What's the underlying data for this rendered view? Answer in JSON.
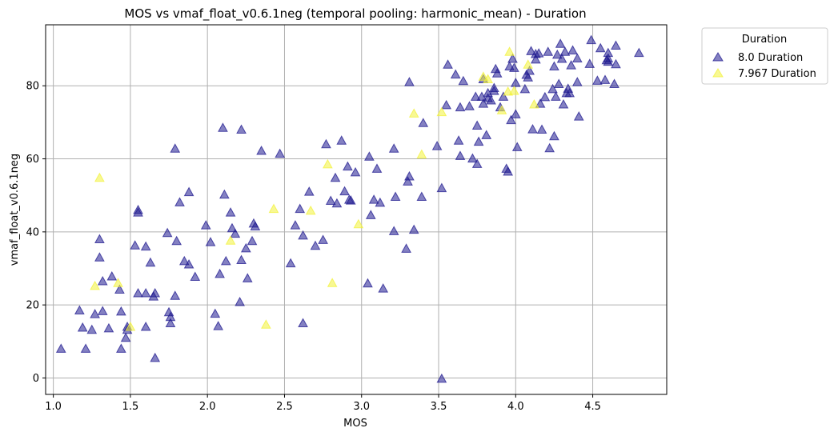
{
  "chart_data": {
    "type": "scatter",
    "title": "MOS vs vmaf_float_v0.6.1neg (temporal pooling: harmonic_mean) - Duration",
    "xlabel": "MOS",
    "ylabel": "vmaf_float_v0.6.1neg",
    "xlim": [
      0.95,
      4.98
    ],
    "ylim": [
      -4.5,
      96.7
    ],
    "xticks": [
      "1.0",
      "1.5",
      "2.0",
      "2.5",
      "3.0",
      "3.5",
      "4.0",
      "4.5"
    ],
    "yticks": [
      "0",
      "20",
      "40",
      "60",
      "80"
    ],
    "grid": true,
    "marker": "triangle",
    "legend": {
      "title": "Duration",
      "placement": "outside-top-right"
    },
    "series": [
      {
        "name": "8.0 Duration",
        "color": "#1f1a8f",
        "points": [
          [
            1.05,
            8.0
          ],
          [
            1.17,
            18.5
          ],
          [
            1.19,
            13.8
          ],
          [
            1.21,
            8.0
          ],
          [
            1.25,
            13.2
          ],
          [
            1.27,
            17.5
          ],
          [
            1.3,
            38.0
          ],
          [
            1.3,
            33.0
          ],
          [
            1.32,
            26.5
          ],
          [
            1.32,
            18.3
          ],
          [
            1.36,
            13.6
          ],
          [
            1.38,
            27.8
          ],
          [
            1.43,
            24.2
          ],
          [
            1.44,
            18.2
          ],
          [
            1.44,
            8.0
          ],
          [
            1.47,
            11.0
          ],
          [
            1.48,
            13.2
          ],
          [
            1.48,
            14.0
          ],
          [
            1.53,
            36.3
          ],
          [
            1.55,
            46.0
          ],
          [
            1.55,
            45.3
          ],
          [
            1.55,
            23.2
          ],
          [
            1.6,
            36.0
          ],
          [
            1.6,
            23.2
          ],
          [
            1.6,
            14.0
          ],
          [
            1.63,
            31.6
          ],
          [
            1.65,
            22.3
          ],
          [
            1.66,
            23.2
          ],
          [
            1.66,
            5.5
          ],
          [
            1.74,
            39.7
          ],
          [
            1.75,
            18.0
          ],
          [
            1.76,
            16.7
          ],
          [
            1.76,
            15.0
          ],
          [
            1.79,
            62.8
          ],
          [
            1.79,
            22.5
          ],
          [
            1.8,
            37.5
          ],
          [
            1.82,
            48.1
          ],
          [
            1.85,
            32.0
          ],
          [
            1.88,
            50.9
          ],
          [
            1.88,
            31.1
          ],
          [
            1.92,
            27.7
          ],
          [
            1.99,
            41.8
          ],
          [
            2.02,
            37.2
          ],
          [
            2.05,
            17.6
          ],
          [
            2.07,
            14.2
          ],
          [
            2.08,
            28.5
          ],
          [
            2.1,
            68.5
          ],
          [
            2.11,
            50.2
          ],
          [
            2.12,
            32.0
          ],
          [
            2.15,
            45.3
          ],
          [
            2.16,
            41.0
          ],
          [
            2.18,
            39.5
          ],
          [
            2.22,
            68.0
          ],
          [
            2.21,
            20.8
          ],
          [
            2.22,
            32.3
          ],
          [
            2.25,
            35.5
          ],
          [
            2.26,
            27.3
          ],
          [
            2.29,
            37.5
          ],
          [
            2.3,
            42.3
          ],
          [
            2.31,
            41.5
          ],
          [
            2.35,
            62.2
          ],
          [
            2.47,
            61.4
          ],
          [
            2.54,
            31.4
          ],
          [
            2.57,
            41.8
          ],
          [
            2.6,
            46.3
          ],
          [
            2.62,
            39.0
          ],
          [
            2.62,
            15.0
          ],
          [
            2.66,
            51.0
          ],
          [
            2.7,
            36.2
          ],
          [
            2.75,
            37.8
          ],
          [
            2.77,
            64.0
          ],
          [
            2.8,
            48.5
          ],
          [
            2.83,
            54.8
          ],
          [
            2.84,
            47.8
          ],
          [
            2.87,
            65.0
          ],
          [
            2.89,
            51.1
          ],
          [
            2.91,
            57.9
          ],
          [
            2.92,
            48.8
          ],
          [
            2.93,
            48.6
          ],
          [
            2.96,
            56.3
          ],
          [
            3.04,
            25.9
          ],
          [
            3.05,
            60.6
          ],
          [
            3.06,
            44.6
          ],
          [
            3.08,
            48.8
          ],
          [
            3.1,
            57.3
          ],
          [
            3.12,
            48.0
          ],
          [
            3.14,
            24.5
          ],
          [
            3.21,
            62.8
          ],
          [
            3.21,
            40.2
          ],
          [
            3.22,
            49.6
          ],
          [
            3.29,
            35.4
          ],
          [
            3.3,
            53.8
          ],
          [
            3.31,
            81.0
          ],
          [
            3.31,
            55.2
          ],
          [
            3.34,
            40.6
          ],
          [
            3.39,
            49.6
          ],
          [
            3.4,
            69.8
          ],
          [
            3.49,
            63.5
          ],
          [
            3.52,
            52.0
          ],
          [
            3.52,
            -0.2
          ],
          [
            3.55,
            74.7
          ],
          [
            3.56,
            85.8
          ],
          [
            3.61,
            83.1
          ],
          [
            3.63,
            65.0
          ],
          [
            3.64,
            74.1
          ],
          [
            3.64,
            60.8
          ],
          [
            3.66,
            81.3
          ],
          [
            3.7,
            74.4
          ],
          [
            3.72,
            60.1
          ],
          [
            3.74,
            77.0
          ],
          [
            3.75,
            69.1
          ],
          [
            3.75,
            58.6
          ],
          [
            3.76,
            64.7
          ],
          [
            3.78,
            77.0
          ],
          [
            3.79,
            81.8
          ],
          [
            3.79,
            75.1
          ],
          [
            3.81,
            66.5
          ],
          [
            3.82,
            78.0
          ],
          [
            3.82,
            76.6
          ],
          [
            3.84,
            76.0
          ],
          [
            3.86,
            78.6
          ],
          [
            3.86,
            79.4
          ],
          [
            3.87,
            84.6
          ],
          [
            3.88,
            83.4
          ],
          [
            3.9,
            74.1
          ],
          [
            3.92,
            77.0
          ],
          [
            3.94,
            57.3
          ],
          [
            3.95,
            56.5
          ],
          [
            3.96,
            85.3
          ],
          [
            3.97,
            70.6
          ],
          [
            3.98,
            87.4
          ],
          [
            3.99,
            84.9
          ],
          [
            4.0,
            72.2
          ],
          [
            4.0,
            80.8
          ],
          [
            4.01,
            63.2
          ],
          [
            4.06,
            79.1
          ],
          [
            4.07,
            83.0
          ],
          [
            4.08,
            82.3
          ],
          [
            4.09,
            84.1
          ],
          [
            4.1,
            89.5
          ],
          [
            4.11,
            68.1
          ],
          [
            4.13,
            88.7
          ],
          [
            4.13,
            87.2
          ],
          [
            4.15,
            88.9
          ],
          [
            4.16,
            75.1
          ],
          [
            4.17,
            68.0
          ],
          [
            4.19,
            76.9
          ],
          [
            4.21,
            89.3
          ],
          [
            4.22,
            62.9
          ],
          [
            4.24,
            79.1
          ],
          [
            4.25,
            85.3
          ],
          [
            4.25,
            66.2
          ],
          [
            4.26,
            77.0
          ],
          [
            4.27,
            88.5
          ],
          [
            4.28,
            80.5
          ],
          [
            4.29,
            91.5
          ],
          [
            4.3,
            87.4
          ],
          [
            4.31,
            74.9
          ],
          [
            4.32,
            89.3
          ],
          [
            4.33,
            78.0
          ],
          [
            4.34,
            79.2
          ],
          [
            4.35,
            78.0
          ],
          [
            4.36,
            85.6
          ],
          [
            4.37,
            89.7
          ],
          [
            4.4,
            87.5
          ],
          [
            4.4,
            81.0
          ],
          [
            4.41,
            71.6
          ],
          [
            4.48,
            86.0
          ],
          [
            4.49,
            92.5
          ],
          [
            4.53,
            81.4
          ],
          [
            4.55,
            90.3
          ],
          [
            4.58,
            81.6
          ],
          [
            4.59,
            87.0
          ],
          [
            4.6,
            86.6
          ],
          [
            4.6,
            89.0
          ],
          [
            4.6,
            87.5
          ],
          [
            4.64,
            80.5
          ],
          [
            4.65,
            91.0
          ],
          [
            4.65,
            85.9
          ],
          [
            4.8,
            89.0
          ]
        ]
      },
      {
        "name": "7.967 Duration",
        "color": "#f2f23a",
        "points": [
          [
            1.27,
            25.2
          ],
          [
            1.3,
            54.8
          ],
          [
            1.42,
            26.0
          ],
          [
            1.5,
            14.0
          ],
          [
            2.15,
            37.6
          ],
          [
            2.38,
            14.6
          ],
          [
            2.43,
            46.3
          ],
          [
            2.67,
            45.8
          ],
          [
            2.78,
            58.5
          ],
          [
            2.81,
            26.0
          ],
          [
            2.98,
            42.1
          ],
          [
            3.34,
            72.4
          ],
          [
            3.39,
            61.2
          ],
          [
            3.52,
            72.8
          ],
          [
            3.79,
            82.5
          ],
          [
            3.82,
            81.8
          ],
          [
            3.91,
            73.3
          ],
          [
            3.95,
            78.4
          ],
          [
            3.96,
            89.3
          ],
          [
            3.99,
            78.6
          ],
          [
            4.08,
            85.8
          ],
          [
            4.12,
            74.9
          ]
        ]
      }
    ]
  }
}
